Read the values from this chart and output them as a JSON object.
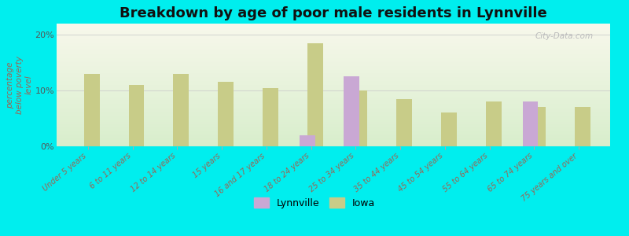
{
  "title": "Breakdown by age of poor male residents in Lynnville",
  "ylabel": "percentage\nbelow poverty\nlevel",
  "categories": [
    "Under 5 years",
    "6 to 11 years",
    "12 to 14 years",
    "15 years",
    "16 and 17 years",
    "18 to 24 years",
    "25 to 34 years",
    "35 to 44 years",
    "45 to 54 years",
    "55 to 64 years",
    "65 to 74 years",
    "75 years and over"
  ],
  "lynnville_values": [
    null,
    null,
    null,
    null,
    null,
    2.0,
    12.5,
    null,
    null,
    null,
    8.0,
    null
  ],
  "iowa_values": [
    13.0,
    11.0,
    13.0,
    11.5,
    10.5,
    18.5,
    10.0,
    8.5,
    6.0,
    8.0,
    7.0,
    7.0
  ],
  "lynnville_color": "#c9a8d4",
  "iowa_color": "#c8cc88",
  "background_color": "#00eeee",
  "ylim": [
    0,
    22
  ],
  "yticks": [
    0,
    10,
    20
  ],
  "ytick_labels": [
    "0%",
    "10%",
    "20%"
  ],
  "bar_width": 0.35,
  "title_fontsize": 13,
  "legend_lynnville": "Lynnville",
  "legend_iowa": "Iowa"
}
